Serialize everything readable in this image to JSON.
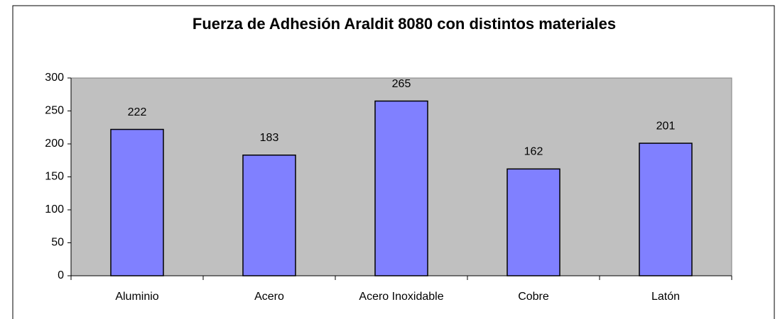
{
  "chart_data": {
    "type": "bar",
    "title": "Fuerza de Adhesión Araldit 8080 con distintos materiales",
    "categories": [
      "Aluminio",
      "Acero",
      "Acero Inoxidable",
      "Cobre",
      "Latón"
    ],
    "values": [
      222,
      183,
      265,
      162,
      201
    ],
    "color": "#8080ff",
    "ylim": [
      0,
      300
    ],
    "yticks": [
      0,
      50,
      100,
      150,
      200,
      250,
      300
    ],
    "grid": false
  }
}
